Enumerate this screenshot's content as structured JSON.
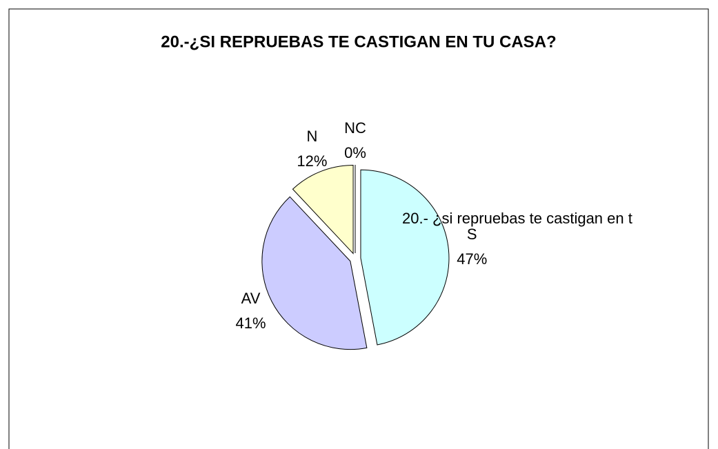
{
  "chart_data": {
    "type": "pie",
    "title": "20.-¿SI REPRUEBAS TE CASTIGAN EN TU CASA?",
    "series": [
      {
        "name": "20.- ¿si repruebas te castigan en t",
        "categories": [
          "S",
          "AV",
          "N",
          "NC"
        ],
        "values": [
          47,
          41,
          12,
          0
        ],
        "value_labels": [
          "47%",
          "41%",
          "12%",
          "0%"
        ],
        "colors": [
          "#ccffff",
          "#ccccff",
          "#ffffcc",
          "#ffcc99"
        ]
      }
    ]
  }
}
